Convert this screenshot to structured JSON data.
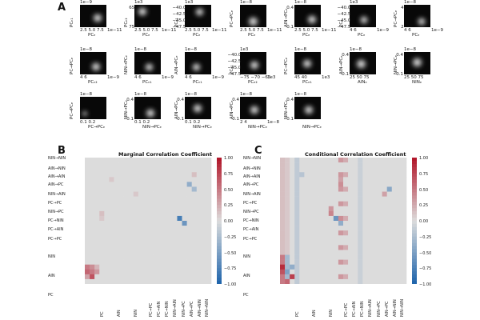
{
  "panel_letters": {
    "a": "A",
    "b": "B",
    "c": "C"
  },
  "tiles": [
    {
      "y": "PCₙ₁",
      "x": "PCₑ",
      "exp_top": "1e−9",
      "xticks": "2.5 5.0 7.5",
      "exp_x": "1e−11"
    },
    {
      "y": "PCₙ₂",
      "x": "PCₑ",
      "exp_top": "1e3",
      "yticks": "65\n75",
      "xticks": "2.5 5.0 7.5",
      "exp_x": "1e−11"
    },
    {
      "y": "PCₑ₁",
      "x": "PCₑ",
      "exp_top": "1e3",
      "yticks": "−40.0\n−42.5\n−45.0\n−47.5",
      "xticks": "2.5 5.0 7.5",
      "exp_x": "1e−11"
    },
    {
      "y": "PC→PCₑ",
      "x": "PCₑ",
      "exp_top": "1e−8",
      "xticks": "2.5 5.0 7.5",
      "exp_x": "1e−11"
    },
    {
      "y": "AIN→PCₑ",
      "x": "PCₑ",
      "exp_top": "1e−8",
      "yticks": "0.4\n0.1",
      "xticks": "2.5 5.0 7.5",
      "exp_x": "1e−11"
    },
    {
      "y": "PCₑ",
      "x": "PCₑ",
      "exp_top": "1e3",
      "yticks": "−40.0\n−42.5\n−45.0\n−47.5",
      "xticks": "4  6",
      "exp_x": "1e−9"
    },
    {
      "y": "PC→PCₑ",
      "x": "PCₑ",
      "exp_top": "1e−8",
      "yticks": "4\n2",
      "xticks": "4  6",
      "exp_x": "1e−9"
    },
    {
      "y": "PC→PCₑ",
      "x": "PCₙ₂",
      "exp_top": "1e−8",
      "xticks": "4  6",
      "exp_x": "1e−9"
    },
    {
      "y": "NIN→PCₑ",
      "x": "PCₙ₁",
      "exp_top": "1e−8",
      "xticks": "4  6",
      "exp_x": "1e−9"
    },
    {
      "y": "AIN→PCₑ",
      "x": "PCₙ₁",
      "exp_top": "1e−8",
      "xticks": "4  6",
      "exp_x": "1e−9"
    },
    {
      "y": "PCₑ₁",
      "x": "PCₑ₂",
      "exp_top": "1e3",
      "yticks": "−40.0\n−42.5\n−45.0\n−47.5",
      "xticks": "−75 −70 −65",
      "exp_x": "1e3"
    },
    {
      "y": "PC→PCₑ",
      "x": "PCₑ₁",
      "exp_top": "1e−8",
      "xticks": "45  40",
      "exp_x": "1e3"
    },
    {
      "y": "AIN→PCₑ",
      "x": "AINₑ",
      "exp_top": "1e−8",
      "yticks": "0.4\n0.1",
      "xticks": "25 50 75",
      "exp_x": ""
    },
    {
      "y": "NIN→PCₑ",
      "x": "NINₑ",
      "exp_top": "1e−8",
      "yticks": "0.4\n0.1",
      "xticks": "25 50 75",
      "exp_x": ""
    },
    {
      "y": "PC→PCₑ",
      "x": "PC→PCₑ",
      "exp_top": "1e−8",
      "xticks": "0.1 0.2",
      "exp_x": ""
    },
    {
      "y": "NIN→PCₑ",
      "x": "NIN→PCₑ",
      "exp_top": "1e−8",
      "yticks": "0.4\n0.1",
      "xticks": "0.1 0.2",
      "exp_x": ""
    },
    {
      "y": "AIN→PCₑ",
      "x": "NIN→PCₑ",
      "exp_top": "1e−8",
      "yticks": "0.4\n0.1",
      "xticks": "0.1 0.2",
      "exp_x": ""
    },
    {
      "y": "AIN→PCₑ",
      "x": "NIN→PCₑ",
      "exp_top": "1e−8",
      "yticks": "0.4\n0.1",
      "xticks": "2  4",
      "exp_x": "1e−8"
    },
    {
      "y": "NIN→PCₑ",
      "x": "NIN→PCₑ",
      "exp_top": "1e−8",
      "yticks": "0.4\n0.1",
      "xticks": "",
      "exp_x": ""
    }
  ],
  "heatmaps": [
    {
      "title": "Marginal Correlation Coefficient"
    },
    {
      "title": "Conditional Correlation Coefficient"
    }
  ],
  "row_labels": [
    "NIN→NIN",
    "AIN→NIN",
    "AIN→AIN",
    "AIN→PC",
    "NIN→AIN",
    "PC→PC",
    "NIN→PC",
    "PC→NIN",
    "PC→AIN",
    "PC→PC",
    "NIN",
    "AIN",
    "PC"
  ],
  "col_labels": [
    "PC",
    "AIN",
    "NIN",
    "PC→PC",
    "PC→AIN",
    "PC→NIN",
    "NIN→AIN",
    "NIN→PC",
    "AIN→PC",
    "AIN→NIN",
    "NIN→NIN"
  ],
  "colorbar_ticks": [
    "1.00",
    "0.75",
    "0.50",
    "0.25",
    "0.00",
    "−0.25",
    "−0.50",
    "−0.75",
    "−1.00"
  ],
  "colors": {
    "pos": "#b2182b",
    "neg": "#2166ac",
    "zero": "#dcdcdc"
  }
}
